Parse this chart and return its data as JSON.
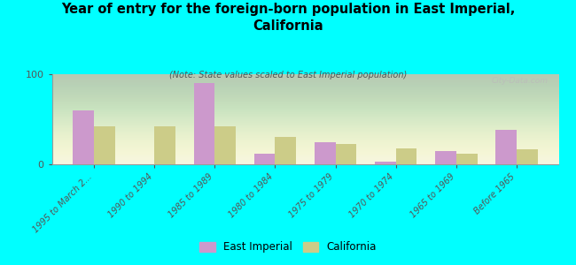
{
  "title": "Year of entry for the foreign-born population in East Imperial,\nCalifornia",
  "subtitle": "(Note: State values scaled to East Imperial population)",
  "categories": [
    "1995 to March 2...",
    "1990 to 1994",
    "1985 to 1989",
    "1980 to 1984",
    "1975 to 1979",
    "1970 to 1974",
    "1965 to 1969",
    "Before 1965"
  ],
  "east_imperial": [
    60,
    0,
    90,
    12,
    25,
    3,
    15,
    38
  ],
  "california": [
    42,
    42,
    42,
    30,
    23,
    18,
    12,
    17
  ],
  "east_imperial_color": "#cc99cc",
  "california_color": "#cccc88",
  "background_color": "#00ffff",
  "ylim": [
    0,
    100
  ],
  "yticks": [
    0,
    100
  ],
  "bar_width": 0.35,
  "legend_ei": "East Imperial",
  "legend_ca": "California",
  "watermark": "City-Data.com"
}
